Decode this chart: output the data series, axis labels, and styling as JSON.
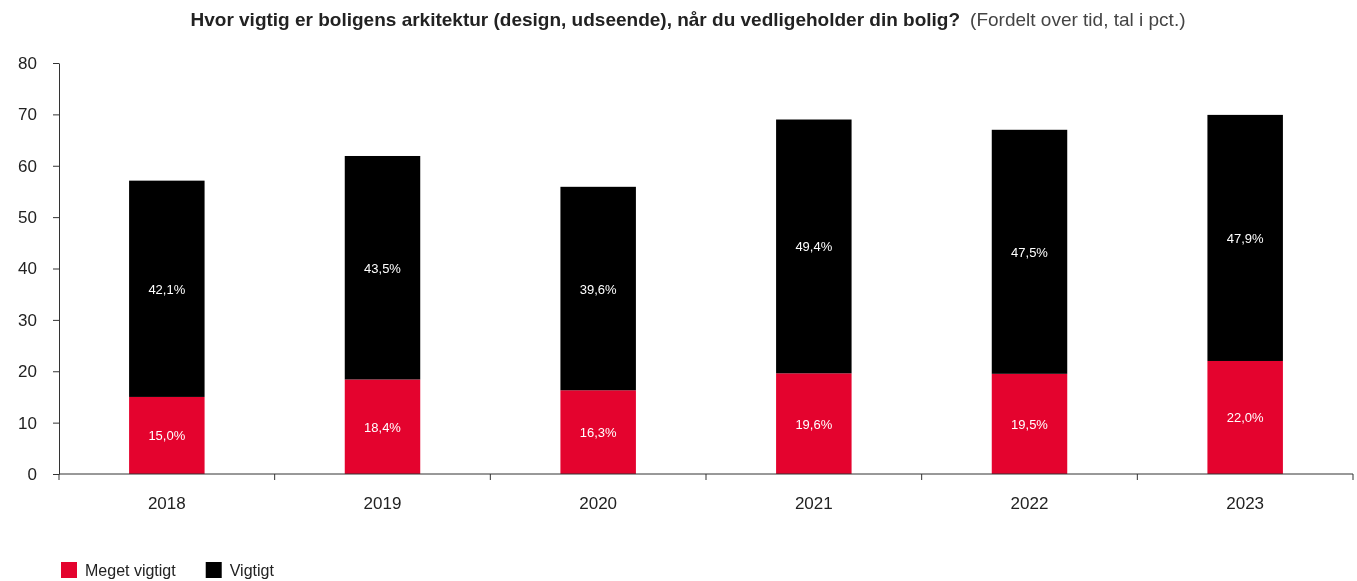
{
  "chart_data": {
    "type": "bar",
    "title": "Hvor vigtig er boligens arkitektur (design, udseende), når du vedligeholder din bolig?",
    "subtitle": "(Fordelt over tid, tal i pct.)",
    "categories": [
      "2018",
      "2019",
      "2020",
      "2021",
      "2022",
      "2023"
    ],
    "stacked": true,
    "series": [
      {
        "name": "Meget vigtigt",
        "color": "#e4032e",
        "values": [
          15.0,
          18.4,
          16.3,
          19.6,
          19.5,
          22.0
        ],
        "value_labels": [
          "15,0%",
          "18,4%",
          "16,3%",
          "19,6%",
          "19,5%",
          "22,0%"
        ]
      },
      {
        "name": "Vigtigt",
        "color": "#000000",
        "values": [
          42.1,
          43.5,
          39.6,
          49.4,
          47.5,
          47.9
        ],
        "value_labels": [
          "42,1%",
          "43,5%",
          "39,6%",
          "49,4%",
          "47,5%",
          "47,9%"
        ]
      }
    ],
    "ylim": [
      0,
      80
    ],
    "yticks": [
      0,
      10,
      20,
      30,
      40,
      50,
      60,
      70,
      80
    ],
    "grid": false,
    "legend": "bottom left"
  }
}
